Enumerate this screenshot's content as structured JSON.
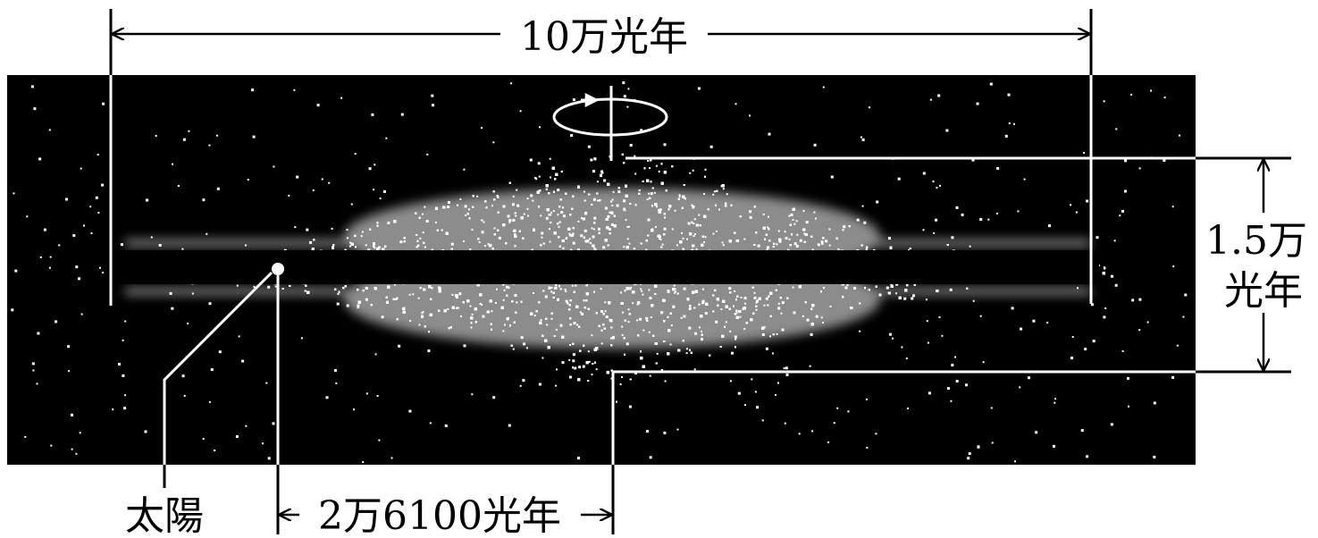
{
  "labels": {
    "galaxy_diameter": "10万光年",
    "thickness_line1": "1.5万",
    "thickness_line2": "光年",
    "sun": "太陽",
    "sun_distance": "2万6100光年"
  },
  "colors": {
    "background_panel": "#000000",
    "stars": "#ffffff",
    "lines_on_panel": "#ffffff",
    "lines_outside": "#000000",
    "text": "#000000"
  },
  "icons": {
    "rotation": "rotation-arrow-icon",
    "sun_marker": "sun-dot-icon"
  }
}
